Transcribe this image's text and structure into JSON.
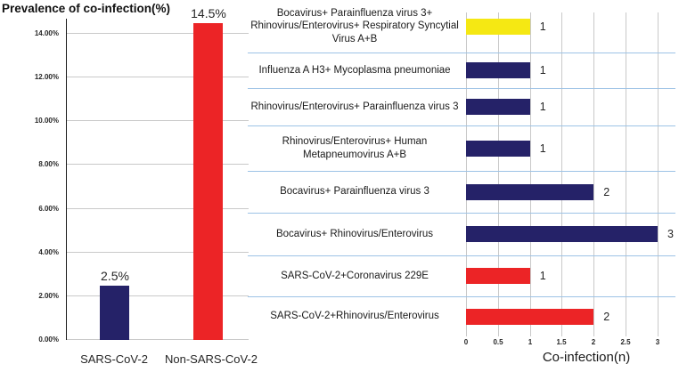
{
  "colors": {
    "navy": "#252268",
    "red": "#EC2426",
    "yellow": "#F5E813",
    "separator_blue": "#9DC3E6",
    "gridline_gray": "#C9C9C9",
    "axis_black": "#1A1A1A"
  },
  "left_chart": {
    "title": "Prevalence of co-infection(%)",
    "y_ticks": [
      "14.00%",
      "12.00%",
      "10.00%",
      "8.00%",
      "6.00%",
      "4.00%",
      "2.00%",
      "0.00%"
    ],
    "bars": [
      {
        "category": "SARS-CoV-2",
        "value": 2.5,
        "data_label": "2.5%",
        "color_key": "navy"
      },
      {
        "category": "Non-SARS-CoV-2",
        "value": 14.5,
        "data_label": "14.5%",
        "color_key": "red"
      }
    ]
  },
  "right_chart": {
    "x_axis_title": "Co-infection(n)",
    "x_ticks": [
      "0",
      "0.5",
      "1",
      "1.5",
      "2",
      "2.5",
      "3"
    ],
    "x_max": 3,
    "rows": [
      {
        "label": "Bocavirus+ Parainfluenza virus 3+ Rhinovirus/Enterovirus+ Respiratory Syncytial Virus A+B",
        "value": 1,
        "value_label": "1",
        "color_key": "yellow"
      },
      {
        "label": "Influenza A H3+ Mycoplasma pneumoniae",
        "value": 1,
        "value_label": "1",
        "color_key": "navy"
      },
      {
        "label": "Rhinovirus/Enterovirus+ Parainfluenza virus 3",
        "value": 1,
        "value_label": "1",
        "color_key": "navy"
      },
      {
        "label": "Rhinovirus/Enterovirus+ Human Metapneumovirus A+B",
        "value": 1,
        "value_label": "1",
        "color_key": "navy"
      },
      {
        "label": "Bocavirus+ Parainfluenza virus 3",
        "value": 2,
        "value_label": "2",
        "color_key": "navy"
      },
      {
        "label": "Bocavirus+ Rhinovirus/Enterovirus",
        "value": 3,
        "value_label": "3",
        "color_key": "navy"
      },
      {
        "label": "SARS-CoV-2+Coronavirus 229E",
        "value": 1,
        "value_label": "1",
        "color_key": "red"
      },
      {
        "label": "SARS-CoV-2+Rhinovirus/Enterovirus",
        "value": 2,
        "value_label": "2",
        "color_key": "red"
      }
    ]
  },
  "chart_data": [
    {
      "type": "bar",
      "title": "Prevalence of co-infection(%)",
      "categories": [
        "SARS-CoV-2",
        "Non-SARS-CoV-2"
      ],
      "values": [
        2.5,
        14.5
      ],
      "data_labels": [
        "2.5%",
        "14.5%"
      ],
      "bar_colors": [
        "#252268",
        "#EC2426"
      ],
      "xlabel": "",
      "ylabel": "Prevalence of co-infection(%)",
      "ylim": [
        0,
        14.7
      ],
      "y_ticks": [
        0,
        2,
        4,
        6,
        8,
        10,
        12,
        14
      ],
      "y_tick_format": "0.00%",
      "grid": true,
      "legend": false
    },
    {
      "type": "bar",
      "orientation": "horizontal",
      "title": "",
      "categories": [
        "Bocavirus+ Parainfluenza virus 3+ Rhinovirus/Enterovirus+ Respiratory Syncytial Virus A+B",
        "Influenza A H3+ Mycoplasma pneumoniae",
        "Rhinovirus/Enterovirus+ Parainfluenza virus 3",
        "Rhinovirus/Enterovirus+ Human Metapneumovirus A+B",
        "Bocavirus+ Parainfluenza virus 3",
        "Bocavirus+ Rhinovirus/Enterovirus",
        "SARS-CoV-2+Coronavirus 229E",
        "SARS-CoV-2+Rhinovirus/Enterovirus"
      ],
      "values": [
        1,
        1,
        1,
        1,
        2,
        3,
        1,
        2
      ],
      "data_labels": [
        "1",
        "1",
        "1",
        "1",
        "2",
        "3",
        "1",
        "2"
      ],
      "bar_colors": [
        "#F5E813",
        "#252268",
        "#252268",
        "#252268",
        "#252268",
        "#252268",
        "#EC2426",
        "#EC2426"
      ],
      "xlabel": "Co-infection(n)",
      "xlim": [
        0,
        3
      ],
      "x_ticks": [
        0,
        0.5,
        1,
        1.5,
        2,
        2.5,
        3
      ],
      "grid": true,
      "legend": false
    }
  ]
}
